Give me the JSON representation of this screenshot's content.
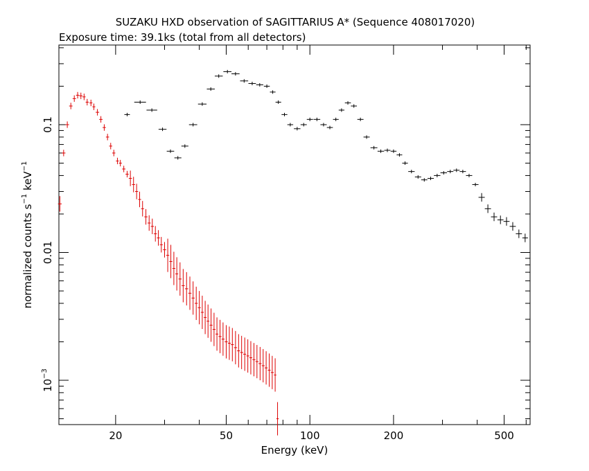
{
  "chart_data": {
    "type": "scatter",
    "title": "SUZAKU HXD observation of SAGITTARIUS A* (Sequence 408017020)",
    "subtitle": "Exposure time: 39.1ks (total from all detectors)",
    "xlabel": "Energy (keV)",
    "ylabel_main": "normalized counts s",
    "ylabel_exp1": "−1",
    "ylabel_mid": " keV",
    "ylabel_exp2": "−1",
    "x_scale": "log",
    "y_scale": "log",
    "xlim": [
      12.5,
      620
    ],
    "ylim": [
      0.00045,
      0.42
    ],
    "x_ticks": [
      {
        "value": 20,
        "label": "20"
      },
      {
        "value": 50,
        "label": "50"
      },
      {
        "value": 100,
        "label": "100"
      },
      {
        "value": 200,
        "label": "200"
      },
      {
        "value": 500,
        "label": "500"
      }
    ],
    "y_ticks": [
      {
        "value": 0.1,
        "label": "0.1"
      },
      {
        "value": 0.01,
        "label": "0.01"
      },
      {
        "value": 0.001,
        "label_base": "10",
        "label_exp": "−3"
      }
    ],
    "grid": false,
    "legend": "none",
    "colors": {
      "series_1": "#000000",
      "series_2": "#dd0000"
    },
    "series": [
      {
        "color": "#000000",
        "points": [
          [
            22.0,
            0.12
          ],
          [
            24.5,
            0.15
          ],
          [
            27.0,
            0.13
          ],
          [
            29.5,
            0.092
          ],
          [
            31.5,
            0.062
          ],
          [
            33.5,
            0.055
          ],
          [
            35.5,
            0.068
          ],
          [
            38.0,
            0.1
          ],
          [
            41.0,
            0.145
          ],
          [
            44.0,
            0.19
          ],
          [
            47.0,
            0.24
          ],
          [
            50.5,
            0.26
          ],
          [
            54.0,
            0.25
          ],
          [
            58.0,
            0.22
          ],
          [
            62.0,
            0.21
          ],
          [
            66.0,
            0.205
          ],
          [
            70.0,
            0.2
          ],
          [
            73.5,
            0.18
          ],
          [
            77.0,
            0.15
          ],
          [
            81.0,
            0.12
          ],
          [
            85.0,
            0.1
          ],
          [
            90.0,
            0.093
          ],
          [
            95.0,
            0.1
          ],
          [
            100.0,
            0.11
          ],
          [
            106.0,
            0.11
          ],
          [
            112.0,
            0.1
          ],
          [
            118.0,
            0.095
          ],
          [
            124.0,
            0.11
          ],
          [
            130.0,
            0.13
          ],
          [
            137.0,
            0.148
          ],
          [
            144.0,
            0.14
          ],
          [
            152.0,
            0.11
          ],
          [
            160.0,
            0.08
          ],
          [
            170.0,
            0.066
          ],
          [
            180.0,
            0.062
          ],
          [
            190.0,
            0.063
          ],
          [
            200.0,
            0.062
          ],
          [
            210.0,
            0.058
          ],
          [
            220.0,
            0.05
          ],
          [
            232.0,
            0.043
          ],
          [
            245.0,
            0.039
          ],
          [
            258.0,
            0.037
          ],
          [
            272.0,
            0.038
          ],
          [
            287.0,
            0.04
          ],
          [
            303.0,
            0.042
          ],
          [
            320.0,
            0.043
          ],
          [
            337.0,
            0.044
          ],
          [
            355.0,
            0.043
          ],
          [
            374.0,
            0.04
          ],
          [
            394.0,
            0.034
          ],
          [
            415.0,
            0.027
          ],
          [
            437.0,
            0.022
          ],
          [
            460.0,
            0.019
          ],
          [
            485.0,
            0.018
          ],
          [
            510.0,
            0.0175
          ],
          [
            537.0,
            0.016
          ],
          [
            565.0,
            0.014
          ],
          [
            595.0,
            0.013
          ]
        ]
      },
      {
        "color": "#dd0000",
        "points": [
          [
            12.6,
            0.024
          ],
          [
            13.0,
            0.06
          ],
          [
            13.4,
            0.1
          ],
          [
            13.8,
            0.14
          ],
          [
            14.2,
            0.16
          ],
          [
            14.6,
            0.17
          ],
          [
            15.0,
            0.168
          ],
          [
            15.4,
            0.165
          ],
          [
            15.8,
            0.15
          ],
          [
            16.3,
            0.148
          ],
          [
            16.7,
            0.138
          ],
          [
            17.2,
            0.125
          ],
          [
            17.7,
            0.11
          ],
          [
            18.2,
            0.095
          ],
          [
            18.7,
            0.08
          ],
          [
            19.2,
            0.068
          ],
          [
            19.7,
            0.06
          ],
          [
            20.3,
            0.052
          ],
          [
            20.8,
            0.05
          ],
          [
            21.4,
            0.045
          ],
          [
            22.0,
            0.041
          ],
          [
            22.6,
            0.038
          ],
          [
            23.2,
            0.034
          ],
          [
            23.8,
            0.03
          ],
          [
            24.4,
            0.026
          ],
          [
            25.0,
            0.022
          ],
          [
            25.7,
            0.019
          ],
          [
            26.4,
            0.017
          ],
          [
            27.1,
            0.016
          ],
          [
            27.8,
            0.014
          ],
          [
            28.5,
            0.013
          ],
          [
            29.2,
            0.0115
          ],
          [
            30.0,
            0.0105
          ],
          [
            30.8,
            0.0095
          ],
          [
            31.6,
            0.0085
          ],
          [
            32.4,
            0.0075
          ],
          [
            33.2,
            0.0068
          ],
          [
            34.1,
            0.0062
          ],
          [
            35.0,
            0.0055
          ],
          [
            36.0,
            0.0052
          ],
          [
            37.0,
            0.0048
          ],
          [
            38.0,
            0.0044
          ],
          [
            39.0,
            0.004
          ],
          [
            40.0,
            0.0037
          ],
          [
            41.0,
            0.0034
          ],
          [
            42.0,
            0.0031
          ],
          [
            43.0,
            0.0029
          ],
          [
            44.1,
            0.0027
          ],
          [
            45.2,
            0.0025
          ],
          [
            46.3,
            0.0023
          ],
          [
            47.5,
            0.0022
          ],
          [
            48.7,
            0.0021
          ],
          [
            50.0,
            0.002
          ],
          [
            51.3,
            0.00195
          ],
          [
            52.6,
            0.0019
          ],
          [
            54.0,
            0.0018
          ],
          [
            55.4,
            0.0017
          ],
          [
            56.8,
            0.00165
          ],
          [
            58.3,
            0.0016
          ],
          [
            59.8,
            0.00155
          ],
          [
            61.3,
            0.0015
          ],
          [
            62.9,
            0.00145
          ],
          [
            64.5,
            0.0014
          ],
          [
            66.2,
            0.00135
          ],
          [
            67.9,
            0.0013
          ],
          [
            69.6,
            0.00125
          ],
          [
            71.4,
            0.0012
          ],
          [
            73.2,
            0.00115
          ],
          [
            75.0,
            0.0011
          ],
          [
            76.5,
            0.0005
          ]
        ]
      }
    ]
  }
}
